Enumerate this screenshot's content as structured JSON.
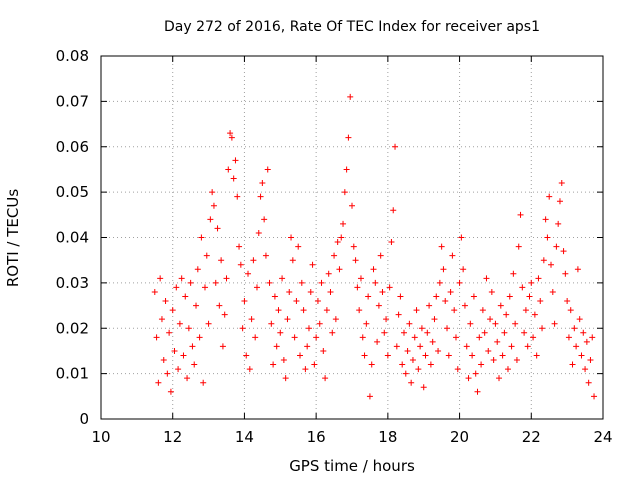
{
  "chart_data": {
    "type": "scatter",
    "title": "Day 272 of 2016, Rate Of TEC Index for receiver aps1",
    "xlabel": "GPS time / hours",
    "ylabel": "ROTI / TECUs",
    "xlim": [
      10,
      24
    ],
    "ylim": [
      0,
      0.08
    ],
    "xticks": [
      10,
      12,
      14,
      16,
      18,
      20,
      22,
      24
    ],
    "xtick_labels": [
      "10",
      "12",
      "14",
      "16",
      "18",
      "20",
      "22",
      "24"
    ],
    "yticks": [
      0,
      0.01,
      0.02,
      0.03,
      0.04,
      0.05,
      0.06,
      0.07,
      0.08
    ],
    "ytick_labels": [
      "0",
      "0.01",
      "0.02",
      "0.03",
      "0.04",
      "0.05",
      "0.06",
      "0.07",
      "0.08"
    ],
    "grid": true,
    "marker": "+",
    "color": "#ff0000",
    "series": [
      {
        "name": "aps1",
        "points": [
          [
            11.5,
            0.028
          ],
          [
            11.55,
            0.018
          ],
          [
            11.6,
            0.008
          ],
          [
            11.65,
            0.031
          ],
          [
            11.7,
            0.022
          ],
          [
            11.75,
            0.013
          ],
          [
            11.8,
            0.026
          ],
          [
            11.85,
            0.01
          ],
          [
            11.9,
            0.019
          ],
          [
            11.95,
            0.006
          ],
          [
            12.0,
            0.024
          ],
          [
            12.05,
            0.015
          ],
          [
            12.1,
            0.029
          ],
          [
            12.15,
            0.011
          ],
          [
            12.2,
            0.021
          ],
          [
            12.25,
            0.031
          ],
          [
            12.3,
            0.014
          ],
          [
            12.35,
            0.027
          ],
          [
            12.4,
            0.009
          ],
          [
            12.45,
            0.02
          ],
          [
            12.5,
            0.03
          ],
          [
            12.55,
            0.016
          ],
          [
            12.6,
            0.012
          ],
          [
            12.65,
            0.025
          ],
          [
            12.7,
            0.033
          ],
          [
            12.75,
            0.018
          ],
          [
            12.8,
            0.04
          ],
          [
            12.85,
            0.008
          ],
          [
            12.9,
            0.029
          ],
          [
            12.95,
            0.036
          ],
          [
            13.0,
            0.021
          ],
          [
            13.05,
            0.044
          ],
          [
            13.1,
            0.05
          ],
          [
            13.15,
            0.047
          ],
          [
            13.2,
            0.03
          ],
          [
            13.25,
            0.042
          ],
          [
            13.3,
            0.025
          ],
          [
            13.35,
            0.035
          ],
          [
            13.4,
            0.016
          ],
          [
            13.45,
            0.023
          ],
          [
            13.5,
            0.031
          ],
          [
            13.55,
            0.055
          ],
          [
            13.6,
            0.063
          ],
          [
            13.65,
            0.062
          ],
          [
            13.7,
            0.053
          ],
          [
            13.75,
            0.057
          ],
          [
            13.8,
            0.049
          ],
          [
            13.85,
            0.038
          ],
          [
            13.9,
            0.034
          ],
          [
            13.95,
            0.02
          ],
          [
            14.0,
            0.026
          ],
          [
            14.05,
            0.014
          ],
          [
            14.1,
            0.032
          ],
          [
            14.15,
            0.011
          ],
          [
            14.2,
            0.022
          ],
          [
            14.25,
            0.035
          ],
          [
            14.3,
            0.018
          ],
          [
            14.35,
            0.029
          ],
          [
            14.4,
            0.041
          ],
          [
            14.45,
            0.049
          ],
          [
            14.5,
            0.052
          ],
          [
            14.55,
            0.044
          ],
          [
            14.6,
            0.036
          ],
          [
            14.65,
            0.055
          ],
          [
            14.7,
            0.03
          ],
          [
            14.75,
            0.021
          ],
          [
            14.8,
            0.012
          ],
          [
            14.85,
            0.027
          ],
          [
            14.9,
            0.016
          ],
          [
            14.95,
            0.024
          ],
          [
            15.0,
            0.019
          ],
          [
            15.05,
            0.031
          ],
          [
            15.1,
            0.013
          ],
          [
            15.15,
            0.009
          ],
          [
            15.2,
            0.022
          ],
          [
            15.25,
            0.028
          ],
          [
            15.3,
            0.04
          ],
          [
            15.35,
            0.035
          ],
          [
            15.4,
            0.018
          ],
          [
            15.45,
            0.026
          ],
          [
            15.5,
            0.038
          ],
          [
            15.55,
            0.014
          ],
          [
            15.6,
            0.03
          ],
          [
            15.65,
            0.024
          ],
          [
            15.7,
            0.011
          ],
          [
            15.75,
            0.016
          ],
          [
            15.8,
            0.02
          ],
          [
            15.85,
            0.028
          ],
          [
            15.9,
            0.034
          ],
          [
            15.95,
            0.012
          ],
          [
            16.0,
            0.018
          ],
          [
            16.05,
            0.026
          ],
          [
            16.1,
            0.021
          ],
          [
            16.15,
            0.03
          ],
          [
            16.2,
            0.015
          ],
          [
            16.25,
            0.009
          ],
          [
            16.3,
            0.024
          ],
          [
            16.35,
            0.032
          ],
          [
            16.4,
            0.028
          ],
          [
            16.45,
            0.019
          ],
          [
            16.5,
            0.036
          ],
          [
            16.55,
            0.022
          ],
          [
            16.6,
            0.039
          ],
          [
            16.65,
            0.033
          ],
          [
            16.7,
            0.04
          ],
          [
            16.75,
            0.043
          ],
          [
            16.8,
            0.05
          ],
          [
            16.85,
            0.055
          ],
          [
            16.9,
            0.062
          ],
          [
            16.95,
            0.071
          ],
          [
            17.0,
            0.047
          ],
          [
            17.05,
            0.038
          ],
          [
            17.1,
            0.035
          ],
          [
            17.15,
            0.029
          ],
          [
            17.2,
            0.024
          ],
          [
            17.25,
            0.031
          ],
          [
            17.3,
            0.018
          ],
          [
            17.35,
            0.014
          ],
          [
            17.4,
            0.021
          ],
          [
            17.45,
            0.027
          ],
          [
            17.5,
            0.005
          ],
          [
            17.55,
            0.012
          ],
          [
            17.6,
            0.033
          ],
          [
            17.65,
            0.03
          ],
          [
            17.7,
            0.017
          ],
          [
            17.75,
            0.025
          ],
          [
            17.8,
            0.036
          ],
          [
            17.85,
            0.028
          ],
          [
            17.9,
            0.019
          ],
          [
            17.95,
            0.022
          ],
          [
            18.0,
            0.014
          ],
          [
            18.05,
            0.029
          ],
          [
            18.1,
            0.039
          ],
          [
            18.15,
            0.046
          ],
          [
            18.2,
            0.06
          ],
          [
            18.25,
            0.016
          ],
          [
            18.3,
            0.023
          ],
          [
            18.35,
            0.027
          ],
          [
            18.4,
            0.012
          ],
          [
            18.45,
            0.019
          ],
          [
            18.5,
            0.01
          ],
          [
            18.55,
            0.015
          ],
          [
            18.6,
            0.021
          ],
          [
            18.65,
            0.008
          ],
          [
            18.7,
            0.013
          ],
          [
            18.75,
            0.018
          ],
          [
            18.8,
            0.024
          ],
          [
            18.85,
            0.011
          ],
          [
            18.9,
            0.016
          ],
          [
            18.95,
            0.02
          ],
          [
            19.0,
            0.007
          ],
          [
            19.05,
            0.014
          ],
          [
            19.1,
            0.019
          ],
          [
            19.15,
            0.025
          ],
          [
            19.2,
            0.012
          ],
          [
            19.25,
            0.017
          ],
          [
            19.3,
            0.022
          ],
          [
            19.35,
            0.027
          ],
          [
            19.4,
            0.015
          ],
          [
            19.45,
            0.03
          ],
          [
            19.5,
            0.038
          ],
          [
            19.55,
            0.033
          ],
          [
            19.6,
            0.026
          ],
          [
            19.65,
            0.02
          ],
          [
            19.7,
            0.014
          ],
          [
            19.75,
            0.028
          ],
          [
            19.8,
            0.036
          ],
          [
            19.85,
            0.024
          ],
          [
            19.9,
            0.018
          ],
          [
            19.95,
            0.011
          ],
          [
            20.0,
            0.03
          ],
          [
            20.05,
            0.04
          ],
          [
            20.1,
            0.033
          ],
          [
            20.15,
            0.025
          ],
          [
            20.2,
            0.016
          ],
          [
            20.25,
            0.009
          ],
          [
            20.3,
            0.021
          ],
          [
            20.35,
            0.014
          ],
          [
            20.4,
            0.027
          ],
          [
            20.45,
            0.01
          ],
          [
            20.5,
            0.006
          ],
          [
            20.55,
            0.018
          ],
          [
            20.6,
            0.012
          ],
          [
            20.65,
            0.024
          ],
          [
            20.7,
            0.019
          ],
          [
            20.75,
            0.031
          ],
          [
            20.8,
            0.015
          ],
          [
            20.85,
            0.022
          ],
          [
            20.9,
            0.028
          ],
          [
            20.95,
            0.013
          ],
          [
            21.0,
            0.021
          ],
          [
            21.05,
            0.017
          ],
          [
            21.1,
            0.009
          ],
          [
            21.15,
            0.025
          ],
          [
            21.2,
            0.014
          ],
          [
            21.25,
            0.019
          ],
          [
            21.3,
            0.023
          ],
          [
            21.35,
            0.011
          ],
          [
            21.4,
            0.027
          ],
          [
            21.45,
            0.016
          ],
          [
            21.5,
            0.032
          ],
          [
            21.55,
            0.021
          ],
          [
            21.6,
            0.013
          ],
          [
            21.65,
            0.038
          ],
          [
            21.7,
            0.045
          ],
          [
            21.75,
            0.029
          ],
          [
            21.8,
            0.019
          ],
          [
            21.85,
            0.024
          ],
          [
            21.9,
            0.016
          ],
          [
            21.95,
            0.027
          ],
          [
            22.0,
            0.03
          ],
          [
            22.05,
            0.018
          ],
          [
            22.1,
            0.023
          ],
          [
            22.15,
            0.014
          ],
          [
            22.2,
            0.031
          ],
          [
            22.25,
            0.026
          ],
          [
            22.3,
            0.02
          ],
          [
            22.35,
            0.035
          ],
          [
            22.4,
            0.044
          ],
          [
            22.45,
            0.04
          ],
          [
            22.5,
            0.049
          ],
          [
            22.55,
            0.034
          ],
          [
            22.6,
            0.028
          ],
          [
            22.65,
            0.021
          ],
          [
            22.7,
            0.038
          ],
          [
            22.75,
            0.043
          ],
          [
            22.8,
            0.048
          ],
          [
            22.85,
            0.052
          ],
          [
            22.9,
            0.037
          ],
          [
            22.95,
            0.032
          ],
          [
            23.0,
            0.026
          ],
          [
            23.05,
            0.018
          ],
          [
            23.1,
            0.024
          ],
          [
            23.15,
            0.012
          ],
          [
            23.2,
            0.02
          ],
          [
            23.25,
            0.016
          ],
          [
            23.3,
            0.033
          ],
          [
            23.35,
            0.022
          ],
          [
            23.4,
            0.014
          ],
          [
            23.45,
            0.019
          ],
          [
            23.5,
            0.011
          ],
          [
            23.55,
            0.017
          ],
          [
            23.6,
            0.008
          ],
          [
            23.65,
            0.013
          ],
          [
            23.7,
            0.018
          ],
          [
            23.75,
            0.005
          ]
        ]
      }
    ]
  }
}
